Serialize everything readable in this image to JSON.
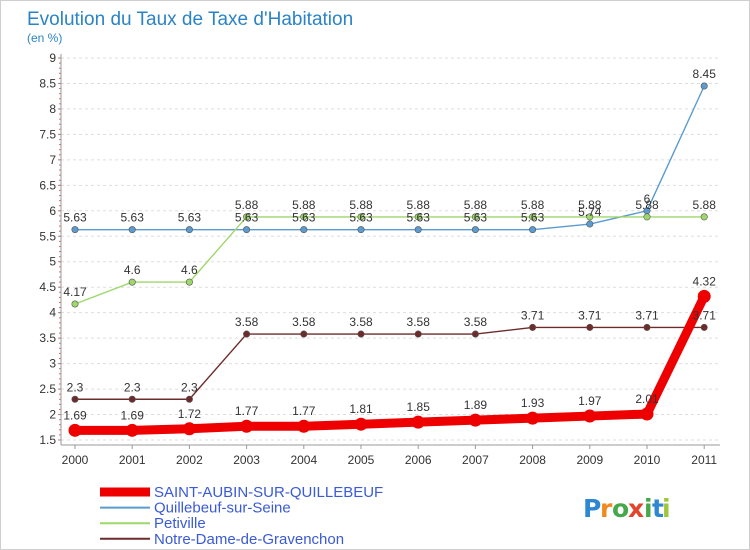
{
  "chart_data": {
    "type": "line",
    "title": "Evolution du Taux de Taxe d'Habitation",
    "subtitle": "(en %)",
    "xlabel": "",
    "ylabel": "",
    "ylim": [
      1.5,
      9
    ],
    "yticks": [
      "1.5",
      "2",
      "2.5",
      "3",
      "3.5",
      "4",
      "4.5",
      "5",
      "5.5",
      "6",
      "6.5",
      "7",
      "7.5",
      "8",
      "8.5",
      "9"
    ],
    "categories": [
      "2000",
      "2001",
      "2002",
      "2003",
      "2004",
      "2005",
      "2006",
      "2007",
      "2008",
      "2009",
      "2010",
      "2011"
    ],
    "grid": "horizontal dashed",
    "legend_position": "bottom-left",
    "series": [
      {
        "name": "Quillebeuf-sur-Seine",
        "color": "#5b9bd0",
        "values": [
          5.63,
          5.63,
          5.63,
          5.63,
          5.63,
          5.63,
          5.63,
          5.63,
          5.63,
          5.74,
          6,
          8.45
        ],
        "labels": [
          "5.63",
          "5.63",
          "5.63",
          "5.63",
          "5.63",
          "5.63",
          "5.63",
          "5.63",
          "5.63",
          "5.74",
          "6",
          "8.45"
        ]
      },
      {
        "name": "Petiville",
        "color": "#9ed86a",
        "values": [
          4.17,
          4.6,
          4.6,
          5.88,
          5.88,
          5.88,
          5.88,
          5.88,
          5.88,
          5.88,
          5.88,
          5.88
        ],
        "labels": [
          "4.17",
          "4.6",
          "4.6",
          "5.88",
          "5.88",
          "5.88",
          "5.88",
          "5.88",
          "5.88",
          "5.88",
          "5.88",
          "5.88"
        ]
      },
      {
        "name": "Notre-Dame-de-Gravenchon",
        "color": "#6e2b2b",
        "values": [
          2.3,
          2.3,
          2.3,
          3.58,
          3.58,
          3.58,
          3.58,
          3.58,
          3.71,
          3.71,
          3.71,
          3.71
        ],
        "labels": [
          "2.3",
          "2.3",
          "2.3",
          "3.58",
          "3.58",
          "3.58",
          "3.58",
          "3.58",
          "3.71",
          "3.71",
          "3.71",
          "3.71"
        ]
      },
      {
        "name": "SAINT-AUBIN-SUR-QUILLEBEUF",
        "color": "#ee0000",
        "highlight": true,
        "values": [
          1.69,
          1.69,
          1.72,
          1.77,
          1.77,
          1.81,
          1.85,
          1.89,
          1.93,
          1.97,
          2.01,
          4.32
        ],
        "labels": [
          "1.69",
          "1.69",
          "1.72",
          "1.77",
          "1.77",
          "1.81",
          "1.85",
          "1.89",
          "1.93",
          "1.97",
          "2.01",
          "4.32"
        ]
      }
    ],
    "legend": [
      {
        "name": "SAINT-AUBIN-SUR-QUILLEBEUF",
        "color": "#ee0000"
      },
      {
        "name": "Quillebeuf-sur-Seine",
        "color": "#5b9bd0"
      },
      {
        "name": "Petiville",
        "color": "#9ed86a"
      },
      {
        "name": "Notre-Dame-de-Gravenchon",
        "color": "#6e2b2b"
      }
    ]
  },
  "branding": {
    "logo_text": "Proxiti",
    "logo_letters": [
      "P",
      "r",
      "o",
      "x",
      "i",
      "t",
      "i"
    ],
    "logo_colors": [
      "#2e88d1",
      "#f08a1d",
      "#46a84a",
      "#e2452c",
      "#46a84a",
      "#2e88d1",
      "#9ec83a"
    ]
  }
}
